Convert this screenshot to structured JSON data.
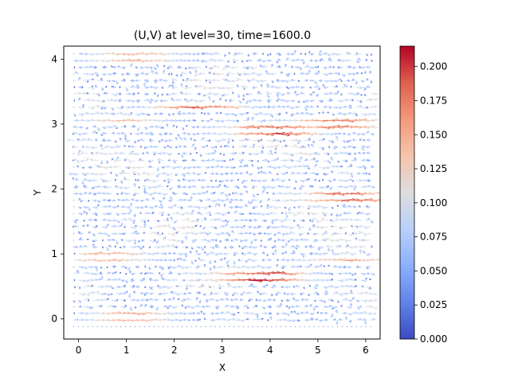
{
  "chart_data": {
    "type": "quiver",
    "title": "(U,V) at level=30, time=1600.0",
    "xlabel": "X",
    "ylabel": "Y",
    "xlim": [
      -0.31,
      6.3
    ],
    "ylim": [
      -0.31,
      4.2
    ],
    "xticks": [
      0,
      1,
      2,
      3,
      4,
      5,
      6
    ],
    "yticks": [
      0,
      1,
      2,
      3,
      4
    ],
    "grid": false,
    "colormap": "coolwarm",
    "colorbar": {
      "vmin": 0.0,
      "vmax": 0.215,
      "ticks": [
        0.0,
        0.025,
        0.05,
        0.075,
        0.1,
        0.125,
        0.15,
        0.175,
        0.2
      ],
      "tick_labels": [
        "0.000",
        "0.025",
        "0.050",
        "0.075",
        "0.100",
        "0.125",
        "0.150",
        "0.175",
        "0.200"
      ]
    },
    "field": {
      "x_range": [
        -0.1,
        6.1
      ],
      "y_range": [
        -0.12,
        4.08
      ],
      "nx": 64,
      "ny": 42,
      "strong_bands": [
        {
          "y": 4.02,
          "x_center": 1.1,
          "magnitude": 0.15
        },
        {
          "y": 3.25,
          "x_center": 2.4,
          "magnitude": 0.2
        },
        {
          "y": 3.05,
          "x_center": 0.9,
          "magnitude": 0.14
        },
        {
          "y": 2.88,
          "x_center": 4.0,
          "magnitude": 0.2
        },
        {
          "y": 3.0,
          "x_center": 5.3,
          "magnitude": 0.18
        },
        {
          "y": 1.9,
          "x_center": 5.5,
          "magnitude": 0.19
        },
        {
          "y": 0.92,
          "x_center": 0.5,
          "magnitude": 0.15
        },
        {
          "y": 0.9,
          "x_center": 5.6,
          "magnitude": 0.16
        },
        {
          "y": 0.66,
          "x_center": 3.7,
          "magnitude": 0.21
        },
        {
          "y": 0.02,
          "x_center": 1.0,
          "magnitude": 0.15
        }
      ]
    }
  }
}
